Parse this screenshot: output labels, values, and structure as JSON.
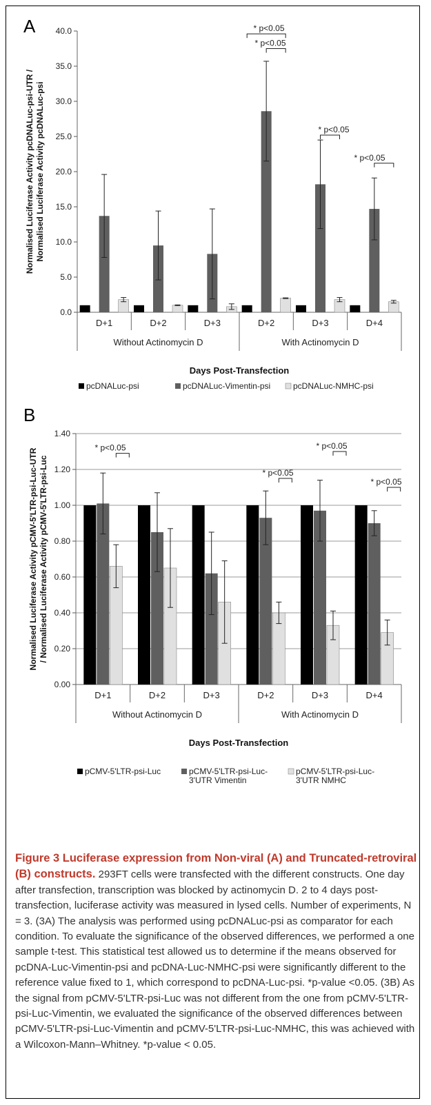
{
  "panels": {
    "a_label": "A",
    "b_label": "B"
  },
  "colors": {
    "series_black": "#000000",
    "series_dark": "#5f5f5f",
    "series_light": "#e0e0e0",
    "caption_title": "#c0392b"
  },
  "chart_data": [
    {
      "type": "bar",
      "panel": "A",
      "ylabel_lines": [
        "Normalised Luciferase Activity pcDNALuc-psi-UTR /",
        "Normalised Luciferase Activity pcDNALuc-psi"
      ],
      "xlabel": "Days Post-Transfection",
      "ylim": [
        0,
        40
      ],
      "y_ticks": [
        "0.0",
        "5.0",
        "10.0",
        "15.0",
        "20.0",
        "25.0",
        "30.0",
        "35.0",
        "40.0"
      ],
      "grid": false,
      "categories": [
        "D+1",
        "D+2",
        "D+3",
        "D+2",
        "D+3",
        "D+4"
      ],
      "groups": [
        "Without Actinomycin D",
        "With Actinomycin D"
      ],
      "legend_position": "bottom",
      "series": [
        {
          "name": "pcDNALuc-psi",
          "values": [
            1,
            1,
            1,
            1,
            1,
            1
          ],
          "errors": [
            0,
            0,
            0,
            0,
            0,
            0
          ]
        },
        {
          "name": "pcDNALuc-Vimentin-psi",
          "values": [
            13.7,
            9.5,
            8.3,
            28.6,
            18.2,
            14.7
          ],
          "errors": [
            5.9,
            4.9,
            6.4,
            7.1,
            6.3,
            4.4
          ]
        },
        {
          "name": "pcDNALuc-NMHC-psi",
          "values": [
            1.8,
            1.0,
            0.8,
            2.0,
            1.8,
            1.5
          ],
          "errors": [
            0.3,
            0.05,
            0.4,
            0.05,
            0.3,
            0.2
          ]
        }
      ],
      "annotations": [
        "* p<0.05",
        "* p<0.05",
        "* p<0.05",
        "* p<0.05"
      ]
    },
    {
      "type": "bar",
      "panel": "B",
      "ylabel_lines": [
        "Normalised Luciferase Activity pCMV-5'LTR-psi-Luc-UTR",
        "/ Normalised Luciferase Activity pCMV-5'LTR-psi-Luc"
      ],
      "xlabel": "Days Post-Transfection",
      "ylim": [
        0,
        1.4
      ],
      "y_ticks": [
        "0.00",
        "0.20",
        "0.40",
        "0.60",
        "0.80",
        "1.00",
        "1.20",
        "1.40"
      ],
      "grid": true,
      "categories": [
        "D+1",
        "D+2",
        "D+3",
        "D+2",
        "D+3",
        "D+4"
      ],
      "groups": [
        "Without Actinomycin D",
        "With Actinomycin D"
      ],
      "legend_position": "bottom",
      "series": [
        {
          "name_lines": [
            "pCMV-5'LTR-psi-Luc"
          ],
          "values": [
            1,
            1,
            1,
            1,
            1,
            1
          ],
          "errors": [
            0,
            0,
            0,
            0,
            0,
            0
          ]
        },
        {
          "name_lines": [
            "pCMV-5'LTR-psi-Luc-",
            "3'UTR Vimentin"
          ],
          "values": [
            1.01,
            0.85,
            0.62,
            0.93,
            0.97,
            0.9
          ],
          "errors": [
            0.17,
            0.22,
            0.23,
            0.15,
            0.17,
            0.07
          ]
        },
        {
          "name_lines": [
            "pCMV-5'LTR-psi-Luc-",
            "3'UTR NMHC"
          ],
          "values": [
            0.66,
            0.65,
            0.46,
            0.4,
            0.33,
            0.29
          ],
          "errors": [
            0.12,
            0.22,
            0.23,
            0.06,
            0.08,
            0.07
          ]
        }
      ],
      "annotations": [
        "* p<0.05",
        "* p<0.05",
        "* p<0.05",
        "* p<0.05"
      ]
    }
  ],
  "caption": {
    "title": "Figure 3 Luciferase expression from Non-viral (A) and Truncated-retroviral (B) constructs.",
    "text": "293FT cells were transfected with the different constructs. One day after transfection, transcription was blocked by actinomycin D. 2 to 4 days post-transfection, luciferase activity was measured in lysed cells. Number of experiments, N = 3. (3A) The analysis was performed using pcDNALuc-psi as comparator for each condition. To evaluate the significance of the observed differences, we performed a one sample t-test. This statistical test allowed us to determine if the means observed for pcDNA-Luc-Vimentin-psi and pcDNA-Luc-NMHC-psi were significantly different to the reference value fixed to 1, which correspond to pcDNA-Luc-psi. *p-value <0.05. (3B) As the signal from pCMV-5'LTR-psi-Luc was not different from the one from pCMV-5'LTR-psi-Luc-Vimentin, we evaluated the significance of the observed differences between pCMV-5'LTR-psi-Luc-Vimentin and pCMV-5'LTR-psi-Luc-NMHC, this was achieved with a Wilcoxon-Mann–Whitney. *p-value < 0.05."
  }
}
